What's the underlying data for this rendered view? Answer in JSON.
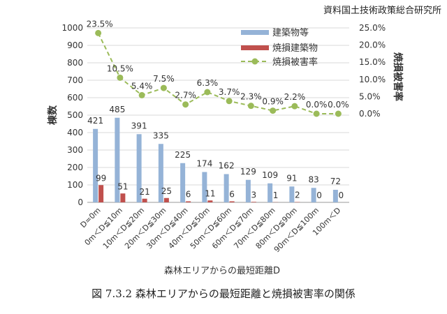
{
  "source": "資料国土技術政策総合研究所",
  "caption": "図 7.3.2  森林エリアからの最短距離と焼損被害率の関係",
  "chart_data": {
    "type": "bar+line",
    "categories": [
      "D=0m",
      "0m＜D≦10m",
      "10m＜D≦20m",
      "20m＜D≦30m",
      "30m＜D≦40m",
      "40m＜D≦50m",
      "50m＜D≦60m",
      "60m＜D≦70m",
      "70m＜D≦80m",
      "80m＜D≦90m",
      "90m＜D≦100m",
      "100m＜D"
    ],
    "series": [
      {
        "name": "建築物等",
        "type": "bar",
        "axis": "left",
        "color": "#95b3d7",
        "values": [
          421,
          485,
          391,
          335,
          225,
          174,
          162,
          129,
          109,
          91,
          83,
          72
        ]
      },
      {
        "name": "焼損建築物",
        "type": "bar",
        "axis": "left",
        "color": "#c0504d",
        "values": [
          99,
          51,
          21,
          25,
          6,
          11,
          6,
          3,
          1,
          2,
          0,
          0
        ]
      },
      {
        "name": "焼損被害率",
        "type": "line",
        "axis": "right",
        "color": "#9bbb59",
        "values": [
          23.5,
          10.5,
          5.4,
          7.5,
          2.7,
          6.3,
          3.7,
          2.3,
          0.9,
          2.2,
          0.0,
          0.0
        ],
        "labels": [
          "23.5%",
          "10.5%",
          "5.4%",
          "7.5%",
          "2.7%",
          "6.3%",
          "3.7%",
          "2.3%",
          "0.9%",
          "2.2%",
          "0.0%",
          "0.0%"
        ]
      }
    ],
    "xlabel": "森林エリアからの最短距離D",
    "ylabel": "棟数",
    "y2label": "焼損被害率",
    "ylim": [
      0,
      1000
    ],
    "yticks": [
      "0",
      "100",
      "200",
      "300",
      "400",
      "500",
      "600",
      "700",
      "800",
      "900",
      "1000"
    ],
    "y2lim": [
      0,
      25
    ],
    "y2ticks": [
      "0.0%",
      "5.0%",
      "10.0%",
      "15.0%",
      "20.0%",
      "25.0%"
    ],
    "grid": true,
    "legend": "top-right"
  }
}
